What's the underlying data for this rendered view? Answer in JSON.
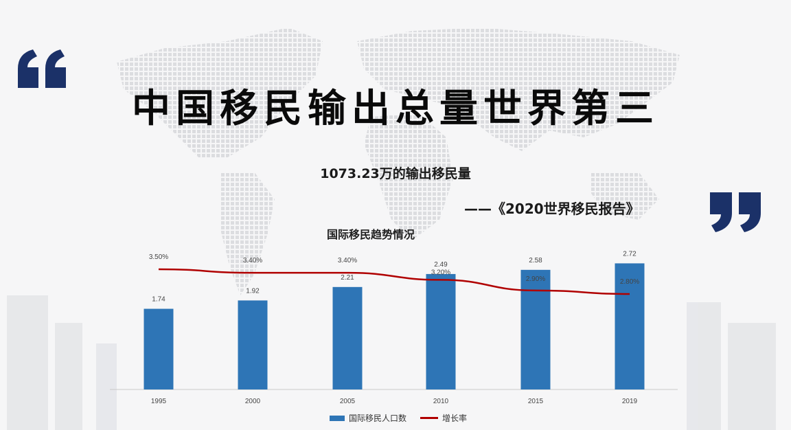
{
  "slide": {
    "title": "中国移民输出总量世界第三",
    "subtitle": "1073.23万的输出移民量",
    "source": "——《2020世界移民报告》"
  },
  "colors": {
    "quote": "#1b3168",
    "bar": "#2e75b6",
    "line": "#b00000"
  },
  "chart_data": {
    "type": "bar",
    "title": "国际移民趋势情况",
    "categories": [
      "1995",
      "2000",
      "2005",
      "2010",
      "2015",
      "2019"
    ],
    "series": [
      {
        "name": "国际移民人口数",
        "type": "bar",
        "values": [
          1.74,
          1.92,
          2.21,
          2.49,
          2.58,
          2.72
        ],
        "labels": [
          "1.74",
          "1.92",
          "2.21",
          "2.49",
          "2.58",
          "2.72"
        ]
      },
      {
        "name": "增长率",
        "type": "line",
        "values": [
          3.5,
          3.4,
          3.4,
          3.2,
          2.9,
          2.8
        ],
        "labels": [
          "3.50%",
          "3.40%",
          "3.40%",
          "3.20%",
          "2.90%",
          "2.80%"
        ]
      }
    ],
    "legend": "bottom"
  }
}
